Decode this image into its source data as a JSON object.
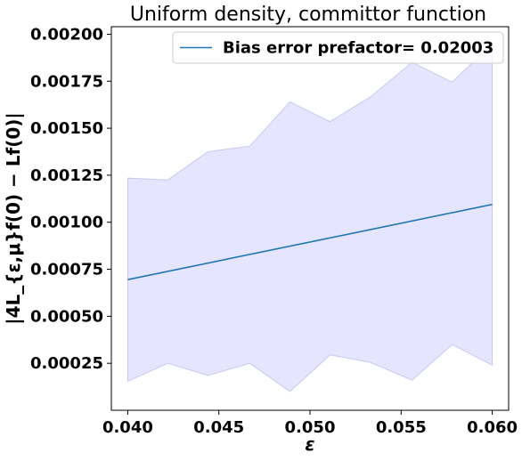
{
  "chart_data": {
    "type": "line",
    "title": "Uniform density, committor function",
    "xlabel": "ε",
    "ylabel": "|4L_{ε,μ}f(0) − Lf(0)|",
    "xlim": [
      0.0391,
      0.0609
    ],
    "ylim": [
      0.0,
      0.00204
    ],
    "xticks": [
      0.04,
      0.045,
      0.05,
      0.055,
      0.06
    ],
    "xtick_labels": [
      "0.040",
      "0.045",
      "0.050",
      "0.055",
      "0.060"
    ],
    "yticks": [
      0.00025,
      0.0005,
      0.00075,
      0.001,
      0.00125,
      0.0015,
      0.00175,
      0.002
    ],
    "ytick_labels": [
      "0.00025",
      "0.00050",
      "0.00075",
      "0.00100",
      "0.00125",
      "0.00150",
      "0.00175",
      "0.00200"
    ],
    "grid": false,
    "legend_position": "top-right",
    "series": [
      {
        "name": "Bias error prefactor= 0.02003",
        "color": "#1f77b4",
        "x": [
          0.04,
          0.06
        ],
        "y": [
          0.000695,
          0.001095
        ]
      }
    ],
    "band": {
      "color": "#e5e5ff",
      "edge_color": "#c8c8f0",
      "x": [
        0.04,
        0.0422,
        0.0444,
        0.0467,
        0.0489,
        0.0511,
        0.0533,
        0.0556,
        0.0578,
        0.06
      ],
      "lower": [
        0.000155,
        0.00025,
        0.000185,
        0.00025,
        0.0001,
        0.000295,
        0.000255,
        0.00016,
        0.00035,
        0.00024
      ],
      "upper": [
        0.001235,
        0.001225,
        0.001375,
        0.001405,
        0.00164,
        0.001535,
        0.001665,
        0.00185,
        0.001745,
        0.00195
      ]
    }
  }
}
